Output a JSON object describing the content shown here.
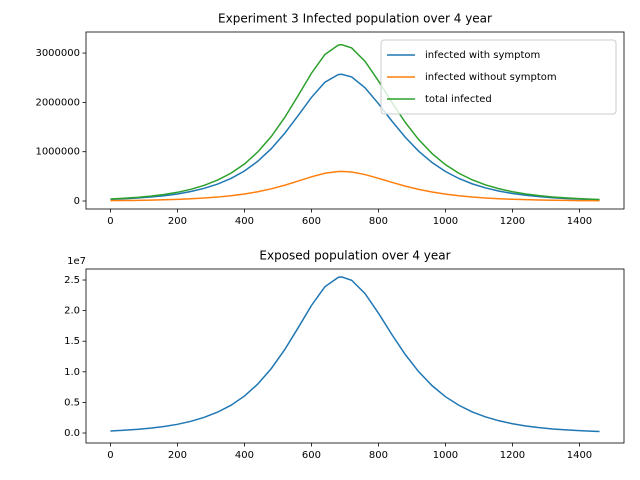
{
  "chart_data": [
    {
      "type": "line",
      "title": "Experiment 3 Infected population over 4 year",
      "x": [
        0,
        40,
        80,
        120,
        160,
        200,
        240,
        280,
        320,
        360,
        400,
        440,
        480,
        520,
        560,
        600,
        640,
        680,
        690,
        720,
        760,
        800,
        840,
        880,
        920,
        960,
        1000,
        1040,
        1080,
        1120,
        1160,
        1200,
        1240,
        1280,
        1320,
        1360,
        1400,
        1440,
        1460
      ],
      "series": [
        {
          "name": "infected with symptom",
          "color": "#1f77b4",
          "values": [
            33200,
            45000,
            60100,
            80200,
            107200,
            143100,
            192500,
            257800,
            343900,
            458000,
            608100,
            807500,
            1060400,
            1371400,
            1730400,
            2100200,
            2407800,
            2563300,
            2570000,
            2516000,
            2296600,
            1973800,
            1622200,
            1292700,
            1010000,
            780000,
            597800,
            456400,
            347500,
            264700,
            201000,
            152700,
            115700,
            87900,
            66600,
            50600,
            38300,
            29000,
            25400
          ]
        },
        {
          "name": "infected without symptom",
          "color": "#ff7f0e",
          "values": [
            7800,
            10500,
            14100,
            18700,
            25000,
            33500,
            44900,
            60200,
            80200,
            106900,
            141900,
            188500,
            247600,
            320100,
            404000,
            490300,
            562200,
            598500,
            600000,
            587400,
            536100,
            460800,
            378700,
            301800,
            235800,
            182100,
            139500,
            106600,
            81100,
            61800,
            46900,
            35600,
            27000,
            20500,
            15500,
            11800,
            8900,
            6800,
            6000
          ]
        },
        {
          "name": "total infected",
          "color": "#2ca02c",
          "values": [
            41000,
            55500,
            74200,
            98900,
            132200,
            176600,
            237400,
            318000,
            424100,
            564900,
            750000,
            996000,
            1308000,
            1691500,
            2134400,
            2590500,
            2970000,
            3161800,
            3170000,
            3103400,
            2832700,
            2434600,
            2000900,
            1594500,
            1245800,
            962100,
            737300,
            563000,
            428600,
            326500,
            247900,
            188300,
            142700,
            108400,
            82100,
            62400,
            47200,
            35800,
            31400
          ]
        }
      ],
      "xlim": [
        -73,
        1533
      ],
      "xticks": [
        0,
        200,
        400,
        600,
        800,
        1000,
        1200,
        1400
      ],
      "ylim": [
        -162000,
        3427000
      ],
      "yticks": [
        0,
        1000000,
        2000000,
        3000000
      ],
      "legend": "upper right"
    },
    {
      "type": "line",
      "title": "Exposed population over 4 year",
      "y_offset_label": "1e7",
      "x": [
        0,
        40,
        80,
        120,
        160,
        200,
        240,
        280,
        320,
        360,
        400,
        440,
        480,
        520,
        560,
        600,
        640,
        680,
        690,
        720,
        760,
        800,
        840,
        880,
        920,
        960,
        1000,
        1040,
        1080,
        1120,
        1160,
        1200,
        1240,
        1280,
        1320,
        1360,
        1400,
        1440,
        1460
      ],
      "series": [
        {
          "color": "#1f77b4",
          "values": [
            329000,
            446000,
            597000,
            796000,
            1063000,
            1420000,
            1910000,
            2558000,
            3412000,
            4544000,
            6033000,
            8012000,
            10521000,
            13607000,
            17169000,
            20839000,
            23891000,
            25434000,
            25500000,
            24965000,
            22787000,
            19584000,
            16096000,
            12827000,
            10022000,
            7739000,
            5931000,
            4529000,
            3448000,
            2627000,
            1994000,
            1515000,
            1148000,
            872000,
            660000,
            502000,
            380000,
            288000,
            252000
          ]
        }
      ],
      "xlim": [
        -73,
        1533
      ],
      "xticks": [
        0,
        200,
        400,
        600,
        800,
        1000,
        1200,
        1400
      ],
      "ylim": [
        -1635000,
        26800000
      ],
      "yticks": [
        {
          "value": 0,
          "label": "0.0"
        },
        {
          "value": 5000000,
          "label": "0.5"
        },
        {
          "value": 10000000,
          "label": "1.0"
        },
        {
          "value": 15000000,
          "label": "1.5"
        },
        {
          "value": 20000000,
          "label": "2.0"
        },
        {
          "value": 25000000,
          "label": "2.5"
        }
      ]
    }
  ]
}
